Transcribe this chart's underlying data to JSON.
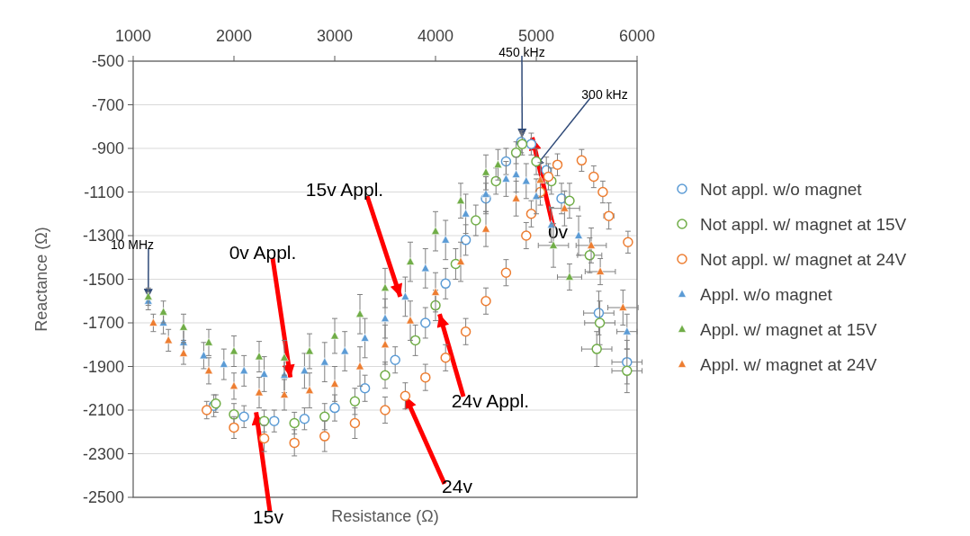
{
  "chart_data": {
    "type": "scatter",
    "xlabel": "Resistance (Ω)",
    "ylabel": "Reactance (Ω)",
    "xlim": [
      1000,
      6000
    ],
    "xticks": [
      1000,
      2000,
      3000,
      4000,
      5000,
      6000
    ],
    "ylim": [
      -2500,
      -500
    ],
    "yticks": [
      -2500,
      -2300,
      -2100,
      -1900,
      -1700,
      -1500,
      -1300,
      -1100,
      -900,
      -700,
      -500
    ],
    "grid": "y",
    "legend": "right",
    "series": [
      {
        "name": "Not appl. w/o magnet",
        "color": "#5b9bd5",
        "marker": "circle",
        "x": [
          1800,
          2100,
          2400,
          2700,
          3000,
          3300,
          3600,
          3900,
          4100,
          4300,
          4500,
          4700,
          4850,
          4950,
          5100,
          5250,
          5620,
          5900
        ],
        "values": [
          -2080,
          -2130,
          -2150,
          -2140,
          -2090,
          -2000,
          -1870,
          -1700,
          -1520,
          -1320,
          -1130,
          -960,
          -870,
          -880,
          -1000,
          -1130,
          -1655,
          -1880
        ],
        "errors": [
          50,
          50,
          50,
          50,
          60,
          60,
          60,
          70,
          70,
          70,
          70,
          60,
          50,
          50,
          60,
          70,
          100,
          100
        ],
        "xerrors": [
          null,
          null,
          null,
          null,
          null,
          null,
          null,
          null,
          null,
          null,
          null,
          null,
          null,
          null,
          null,
          null,
          150,
          150
        ]
      },
      {
        "name": "Not appl. w/ magnet at 15V",
        "color": "#70ad47",
        "marker": "circle",
        "x": [
          1820,
          2000,
          2300,
          2600,
          2900,
          3200,
          3500,
          3800,
          4000,
          4200,
          4400,
          4600,
          4800,
          4860,
          5000,
          5150,
          5330,
          5530,
          5600,
          5630,
          5900
        ],
        "values": [
          -2070,
          -2120,
          -2150,
          -2160,
          -2130,
          -2060,
          -1940,
          -1780,
          -1620,
          -1430,
          -1230,
          -1050,
          -920,
          -880,
          -960,
          -1050,
          -1140,
          -1390,
          -1820,
          -1700,
          -1920
        ],
        "errors": [
          40,
          50,
          50,
          50,
          60,
          60,
          60,
          70,
          70,
          70,
          70,
          60,
          50,
          50,
          60,
          60,
          80,
          80,
          80,
          100,
          100
        ],
        "xerrors": [
          null,
          null,
          null,
          null,
          null,
          null,
          null,
          null,
          null,
          null,
          null,
          null,
          null,
          null,
          null,
          null,
          null,
          120,
          150,
          150,
          150
        ]
      },
      {
        "name": "Not appl. w/ magnet at 24V",
        "color": "#ed7d31",
        "marker": "circle",
        "x": [
          1730,
          2000,
          2300,
          2600,
          2900,
          3200,
          3500,
          3700,
          3900,
          4100,
          4300,
          4500,
          4700,
          4900,
          4950,
          5040,
          5120,
          5210,
          5450,
          5570,
          5660,
          5720,
          5910
        ],
        "values": [
          -2100,
          -2180,
          -2230,
          -2250,
          -2220,
          -2160,
          -2100,
          -2035,
          -1950,
          -1860,
          -1740,
          -1600,
          -1470,
          -1300,
          -1200,
          -1100,
          -1030,
          -975,
          -955,
          -1030,
          -1100,
          -1210,
          -1330
        ],
        "errors": [
          40,
          50,
          60,
          60,
          70,
          70,
          60,
          60,
          60,
          60,
          60,
          60,
          60,
          60,
          60,
          60,
          60,
          50,
          50,
          50,
          50,
          60,
          50
        ],
        "xerrors": [
          null,
          null,
          null,
          null,
          null,
          null,
          null,
          null,
          null,
          null,
          null,
          null,
          null,
          null,
          null,
          null,
          null,
          null,
          null,
          null,
          null,
          50,
          null
        ]
      },
      {
        "name": "Appl. w/o magnet",
        "color": "#5b9bd5",
        "marker": "triangle",
        "x": [
          1150,
          1300,
          1500,
          1700,
          1900,
          2100,
          2300,
          2500,
          2700,
          2900,
          3100,
          3300,
          3500,
          3700,
          3900,
          4100,
          4300,
          4500,
          4700,
          4800,
          4900,
          5000,
          5150,
          5420,
          5900
        ],
        "values": [
          -1600,
          -1700,
          -1790,
          -1850,
          -1890,
          -1920,
          -1935,
          -1940,
          -1920,
          -1880,
          -1830,
          -1770,
          -1680,
          -1580,
          -1450,
          -1320,
          -1200,
          -1110,
          -1040,
          -1020,
          -1050,
          -1120,
          -1250,
          -1300,
          -1740
        ],
        "errors": [
          40,
          50,
          60,
          60,
          70,
          70,
          80,
          80,
          80,
          90,
          90,
          90,
          90,
          90,
          90,
          90,
          90,
          80,
          80,
          80,
          80,
          80,
          80,
          90,
          80
        ],
        "xerrors": [
          null,
          null,
          null,
          null,
          null,
          null,
          null,
          null,
          null,
          null,
          null,
          null,
          null,
          null,
          null,
          null,
          null,
          null,
          null,
          null,
          null,
          null,
          null,
          null,
          100
        ]
      },
      {
        "name": "Appl. w/ magnet at 15V",
        "color": "#70ad47",
        "marker": "triangle",
        "x": [
          1150,
          1300,
          1500,
          1750,
          2000,
          2250,
          2500,
          2750,
          3000,
          3250,
          3500,
          3750,
          4000,
          4250,
          4500,
          4620,
          5170,
          5330
        ],
        "values": [
          -1580,
          -1650,
          -1720,
          -1790,
          -1830,
          -1855,
          -1860,
          -1830,
          -1760,
          -1660,
          -1540,
          -1420,
          -1280,
          -1140,
          -1010,
          -975,
          -1345,
          -1490
        ],
        "errors": [
          40,
          50,
          60,
          60,
          70,
          70,
          80,
          80,
          80,
          90,
          90,
          90,
          90,
          80,
          80,
          70,
          100,
          60
        ],
        "xerrors": [
          null,
          null,
          null,
          null,
          null,
          null,
          null,
          null,
          null,
          null,
          null,
          null,
          null,
          null,
          null,
          null,
          150,
          120
        ]
      },
      {
        "name": "Appl. w/ magnet at 24V",
        "color": "#ed7d31",
        "marker": "triangle",
        "x": [
          1200,
          1350,
          1500,
          1750,
          2000,
          2250,
          2500,
          2750,
          3000,
          3250,
          3500,
          3750,
          4000,
          4250,
          4500,
          4800,
          5040,
          5280,
          5545,
          5635,
          5860
        ],
        "values": [
          -1700,
          -1780,
          -1840,
          -1920,
          -1990,
          -2020,
          -2030,
          -2010,
          -1980,
          -1900,
          -1800,
          -1690,
          -1560,
          -1420,
          -1270,
          -1130,
          -1045,
          -1175,
          -1345,
          -1465,
          -1630
        ],
        "errors": [
          40,
          50,
          50,
          60,
          60,
          70,
          70,
          80,
          80,
          90,
          90,
          90,
          90,
          90,
          80,
          80,
          80,
          80,
          80,
          60,
          80
        ],
        "xerrors": [
          null,
          null,
          null,
          null,
          null,
          null,
          null,
          null,
          null,
          null,
          null,
          null,
          null,
          null,
          null,
          null,
          null,
          150,
          150,
          150,
          150
        ]
      }
    ],
    "annotations": [
      {
        "text": "450 kHz",
        "x": 4860,
        "y": -850
      },
      {
        "text": "300 kHz",
        "x": 4990,
        "y": -985
      },
      {
        "text": "10 MHz",
        "x": 1150,
        "y": -1585
      },
      {
        "text": "0v Appl.",
        "x": 2560,
        "y": -1950
      },
      {
        "text": "15v Appl.",
        "x": 3650,
        "y": -1580
      },
      {
        "text": "24v Appl.",
        "x": 4040,
        "y": -1660
      },
      {
        "text": "24v",
        "x": 3700,
        "y": -2035
      },
      {
        "text": "15v",
        "x": 2220,
        "y": -2110
      },
      {
        "text": "0v",
        "x": 4960,
        "y": -850
      }
    ]
  }
}
